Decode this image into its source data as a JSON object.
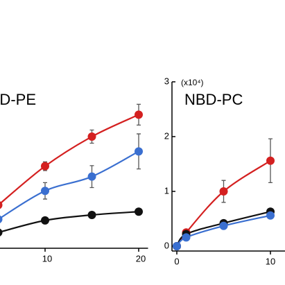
{
  "chart_data": [
    {
      "type": "line",
      "title": "NBD-PE",
      "x": [
        5,
        10,
        15,
        20
      ],
      "series": [
        {
          "color": "#d42020",
          "values": [
            0.75,
            1.46,
            2.0,
            2.4
          ],
          "errors": [
            0.05,
            0.08,
            0.12,
            0.19
          ]
        },
        {
          "color": "#3a6fd0",
          "values": [
            0.49,
            1.01,
            1.27,
            1.73
          ],
          "errors": [
            0.06,
            0.15,
            0.2,
            0.32
          ]
        },
        {
          "color": "#111111",
          "values": [
            0.25,
            0.47,
            0.57,
            0.63
          ],
          "errors": [
            0.03,
            0.04,
            0.06,
            0.04
          ]
        }
      ],
      "xlim": [
        0,
        21
      ],
      "ylim": [
        0,
        3
      ],
      "xticks": [
        10,
        20
      ]
    },
    {
      "type": "line",
      "title": "NBD-PC",
      "y_label": "(x10⁴)",
      "x": [
        0,
        1,
        5,
        10
      ],
      "series": [
        {
          "color": "#d42020",
          "values": [
            0,
            0.25,
            1.0,
            1.56
          ],
          "errors": [
            0,
            0.04,
            0.2,
            0.4
          ]
        },
        {
          "color": "#111111",
          "values": [
            0,
            0.22,
            0.42,
            0.63
          ],
          "errors": [
            0,
            0.02,
            0.04,
            0.04
          ]
        },
        {
          "color": "#3a6fd0",
          "values": [
            0,
            0.16,
            0.37,
            0.56
          ],
          "errors": [
            0,
            0.02,
            0.04,
            0.04
          ]
        }
      ],
      "xlim": [
        0,
        12
      ],
      "ylim": [
        0,
        3
      ],
      "xticks": [
        0,
        10
      ],
      "yticks": [
        0,
        1,
        2,
        3
      ]
    }
  ]
}
